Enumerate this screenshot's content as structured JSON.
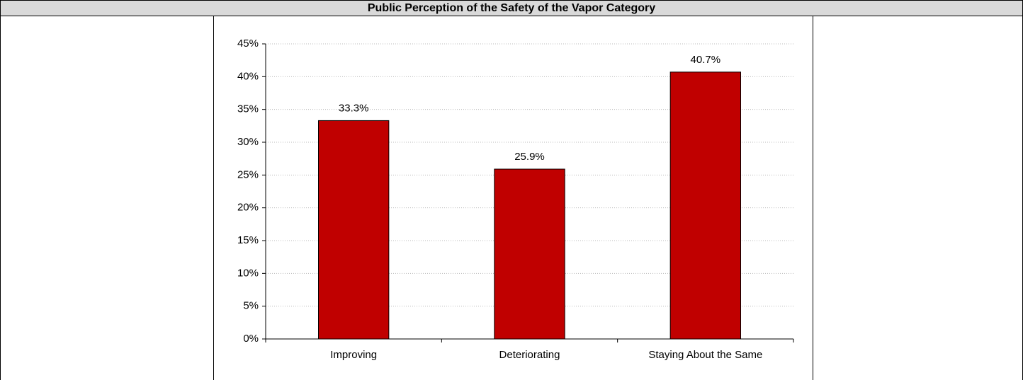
{
  "chart_data": {
    "type": "bar",
    "title": "Public Perception of the Safety of the Vapor Category",
    "categories": [
      "Improving",
      "Deteriorating",
      "Staying About the Same"
    ],
    "values": [
      33.3,
      25.9,
      40.7
    ],
    "value_labels": [
      "33.3%",
      "25.9%",
      "40.7%"
    ],
    "color": "#c00000",
    "ylim": [
      0,
      45
    ],
    "yticks": [
      {
        "value": 0,
        "label": "0%"
      },
      {
        "value": 5,
        "label": "5%"
      },
      {
        "value": 10,
        "label": "10%"
      },
      {
        "value": 15,
        "label": "15%"
      },
      {
        "value": 20,
        "label": "20%"
      },
      {
        "value": 25,
        "label": "25%"
      },
      {
        "value": 30,
        "label": "30%"
      },
      {
        "value": 35,
        "label": "35%"
      },
      {
        "value": 40,
        "label": "40%"
      },
      {
        "value": 45,
        "label": "45%"
      }
    ],
    "grid": true
  }
}
